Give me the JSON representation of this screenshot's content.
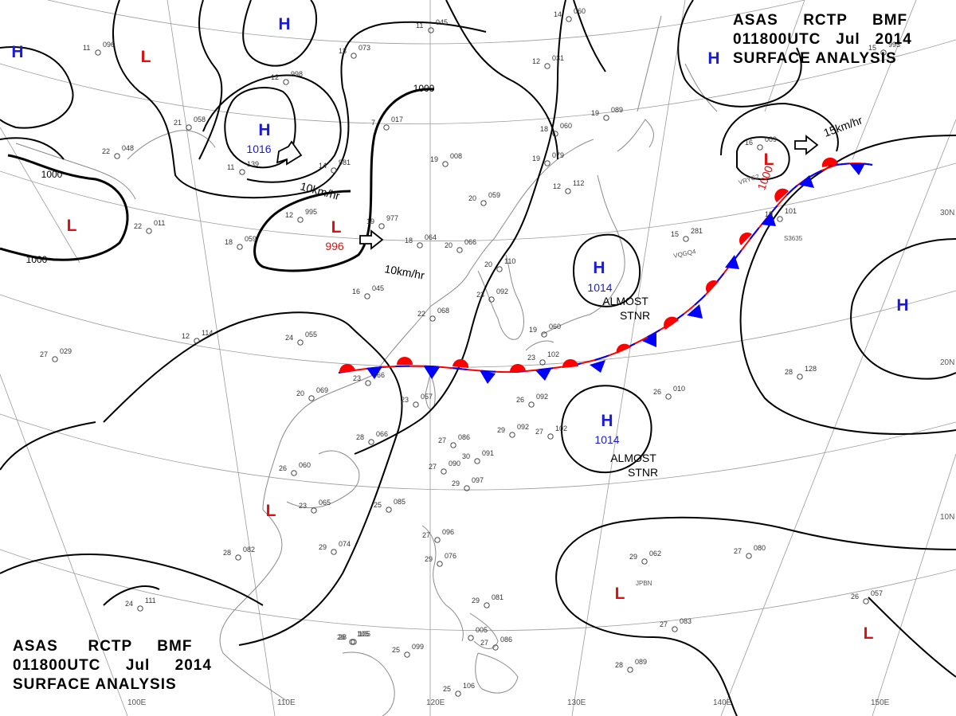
{
  "title": {
    "line1": [
      "ASAS",
      "RCTP",
      "BMF"
    ],
    "line2": [
      "011800UTC",
      "Jul",
      "2014"
    ],
    "line3": "SURFACE ANALYSIS"
  },
  "colors": {
    "high": "#1a1adb",
    "low": "#e01010",
    "warm_front": "#ff0000",
    "cold_front": "#0000ff",
    "isobar": "#000000",
    "grid": "#9a9a9a",
    "coast": "#8a8a8a"
  },
  "lon_labels": [
    "100E",
    "110E",
    "120E",
    "130E",
    "140E",
    "150E"
  ],
  "lat_labels": [
    "30N",
    "20N",
    "10N"
  ],
  "pressure_centers": [
    {
      "type": "H",
      "value": ""
    },
    {
      "type": "L",
      "value": ""
    },
    {
      "type": "H",
      "value": ""
    },
    {
      "type": "H",
      "value": "1016"
    },
    {
      "type": "L",
      "value": "996"
    },
    {
      "type": "L",
      "value": ""
    },
    {
      "type": "L",
      "value": "1000"
    },
    {
      "type": "H",
      "value": ""
    },
    {
      "type": "H",
      "value": "1014"
    },
    {
      "type": "H",
      "value": "1014"
    },
    {
      "type": "H",
      "value": ""
    },
    {
      "type": "L",
      "value": ""
    },
    {
      "type": "L",
      "value": ""
    },
    {
      "type": "L",
      "value": ""
    }
  ],
  "isobar_labels": [
    "1000",
    "1000",
    "1000"
  ],
  "motions": [
    {
      "label": "10km/hr"
    },
    {
      "label": "10km/hr"
    },
    {
      "label": "15km/hr"
    }
  ],
  "annotations": [
    {
      "line1": "ALMOST",
      "line2": "STNR"
    },
    {
      "line1": "ALMOST",
      "line2": "STNR"
    }
  ],
  "stations": [
    {
      "a": "11",
      "b": "096"
    },
    {
      "a": "11",
      "b": "045"
    },
    {
      "a": "14",
      "b": "060"
    },
    {
      "a": "13",
      "b": "073"
    },
    {
      "a": "12",
      "b": "998"
    },
    {
      "a": "12",
      "b": "031"
    },
    {
      "a": "21",
      "b": "058"
    },
    {
      "a": "22",
      "b": "048"
    },
    {
      "a": "11",
      "b": "139"
    },
    {
      "a": "14",
      "b": "981"
    },
    {
      "a": "7",
      "b": "017"
    },
    {
      "a": "19",
      "b": "008"
    },
    {
      "a": "18",
      "b": "060"
    },
    {
      "a": "19",
      "b": "089"
    },
    {
      "a": "12",
      "b": "112"
    },
    {
      "a": "19",
      "b": "079"
    },
    {
      "a": "12",
      "b": "995"
    },
    {
      "a": "19",
      "b": "977"
    },
    {
      "a": "20",
      "b": "059"
    },
    {
      "a": "22",
      "b": "011"
    },
    {
      "a": "18",
      "b": "059"
    },
    {
      "a": "18",
      "b": "064"
    },
    {
      "a": "20",
      "b": "066"
    },
    {
      "a": "16",
      "b": "045"
    },
    {
      "a": "20",
      "b": "110"
    },
    {
      "a": "23",
      "b": "092"
    },
    {
      "a": "22",
      "b": "068"
    },
    {
      "a": "24",
      "b": "055"
    },
    {
      "a": "12",
      "b": "114"
    },
    {
      "a": "27",
      "b": "029"
    },
    {
      "a": "23",
      "b": "066"
    },
    {
      "a": "20",
      "b": "069"
    },
    {
      "a": "23",
      "b": "057"
    },
    {
      "a": "23",
      "b": "102"
    },
    {
      "a": "26",
      "b": "092"
    },
    {
      "a": "29",
      "b": "092"
    },
    {
      "a": "27",
      "b": "102"
    },
    {
      "a": "28",
      "b": "066"
    },
    {
      "a": "27",
      "b": "086"
    },
    {
      "a": "30",
      "b": "091"
    },
    {
      "a": "27",
      "b": "090"
    },
    {
      "a": "29",
      "b": "097"
    },
    {
      "a": "26",
      "b": "060"
    },
    {
      "a": "23",
      "b": "065"
    },
    {
      "a": "25",
      "b": "085"
    },
    {
      "a": "29",
      "b": "074"
    },
    {
      "a": "28",
      "b": "082"
    },
    {
      "a": "27",
      "b": "096"
    },
    {
      "a": "29",
      "b": "076"
    },
    {
      "a": "29",
      "b": "081"
    },
    {
      "a": "26",
      "b": "105"
    },
    {
      "a": "28",
      "b": "128"
    },
    {
      "a": "27",
      "b": "080"
    },
    {
      "a": "29",
      "b": "062"
    },
    {
      "a": "27",
      "b": "083"
    },
    {
      "a": "26",
      "b": "057"
    },
    {
      "a": "28",
      "b": "089"
    },
    {
      "a": "28",
      "b": "105"
    },
    {
      "a": "25",
      "b": "099"
    },
    {
      "a": "27",
      "b": "086"
    },
    {
      "a": "25",
      "b": "106"
    },
    {
      "a": "24",
      "b": "111"
    },
    {
      "a": "15",
      "b": "281"
    },
    {
      "a": "19",
      "b": "101"
    },
    {
      "a": "16",
      "b": "009"
    },
    {
      "a": "15",
      "b": "995"
    },
    {
      "a": "",
      "b": "005"
    },
    {
      "a": "19",
      "b": "060"
    },
    {
      "a": "26",
      "b": "010"
    }
  ],
  "ship_ids": [
    "VRYG2",
    "VQGQ4",
    "S3635",
    "JPBN"
  ]
}
